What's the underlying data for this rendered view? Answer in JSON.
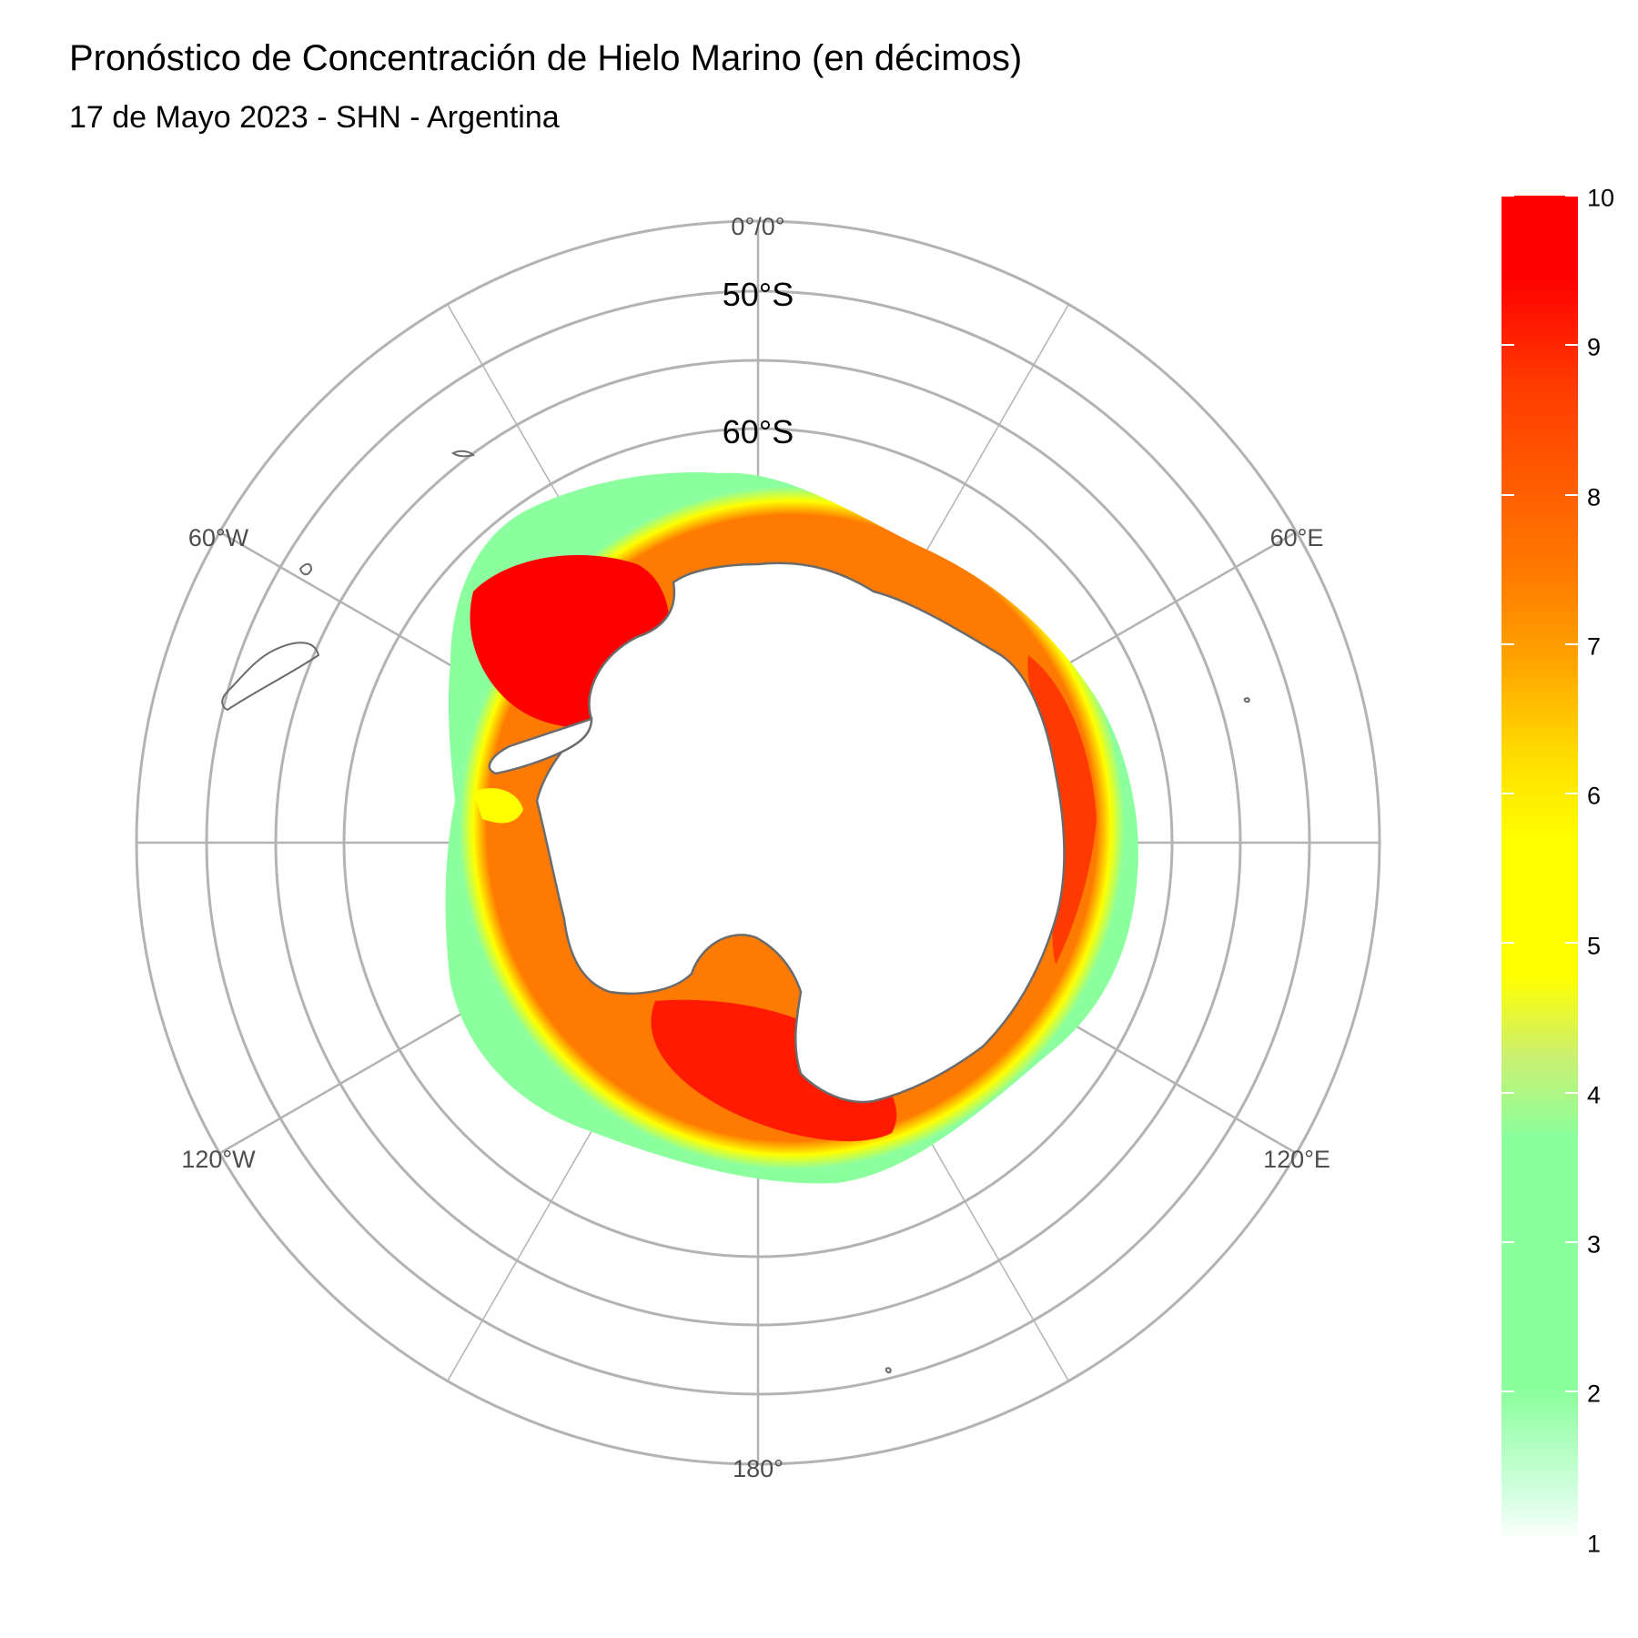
{
  "title": "Pronóstico de Concentración de Hielo Marino (en décimos)",
  "subtitle": "17 de Mayo 2023 - SHN - Argentina",
  "map": {
    "projection": "south polar stereographic",
    "latitude_labels": [
      "50°S",
      "60°S"
    ],
    "longitude_labels": {
      "top": "0°/0°",
      "upper_left": "60°W",
      "upper_right": "60°E",
      "lower_left": "120°W",
      "lower_right": "120°E",
      "bottom": "180°"
    },
    "colors": {
      "graticule": "#b3b3b3",
      "coastline": "#6b6b6b",
      "land": "#ffffff",
      "ice_low": "#8cff9e",
      "ice_mid": "#ffff00",
      "ice_high": "#ff7a00",
      "ice_max": "#ff0000"
    }
  },
  "legend": {
    "min": 1,
    "max": 10,
    "labels": [
      "10",
      "9",
      "8",
      "7",
      "6",
      "5",
      "4",
      "3",
      "2",
      "1"
    ]
  }
}
